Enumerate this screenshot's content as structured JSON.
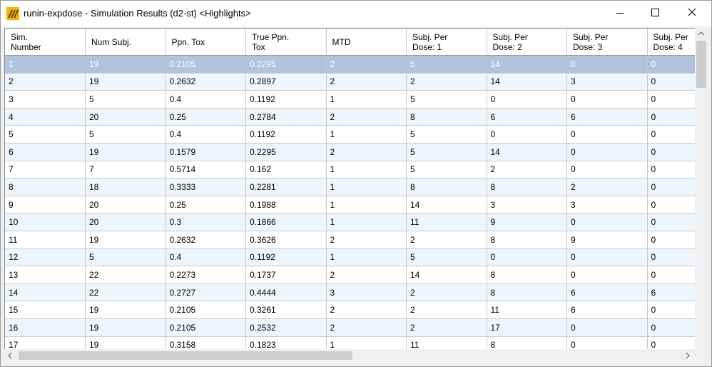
{
  "window": {
    "title": "runin-expdose - Simulation Results (d2-st) <Highlights>"
  },
  "table": {
    "columns": [
      "Sim. Number",
      "Num Subj.",
      "Ppn. Tox",
      "True Ppn. Tox",
      "MTD",
      "Subj. Per Dose: 1",
      "Subj. Per Dose: 2",
      "Subj. Per Dose: 3",
      "Subj. Per Dose: 4"
    ],
    "selected_row": 0,
    "rows": [
      [
        "1",
        "19",
        "0.2105",
        "0.2295",
        "2",
        "5",
        "14",
        "0",
        "0"
      ],
      [
        "2",
        "19",
        "0.2632",
        "0.2897",
        "2",
        "2",
        "14",
        "3",
        "0"
      ],
      [
        "3",
        "5",
        "0.4",
        "0.1192",
        "1",
        "5",
        "0",
        "0",
        "0"
      ],
      [
        "4",
        "20",
        "0.25",
        "0.2784",
        "2",
        "8",
        "6",
        "6",
        "0"
      ],
      [
        "5",
        "5",
        "0.4",
        "0.1192",
        "1",
        "5",
        "0",
        "0",
        "0"
      ],
      [
        "6",
        "19",
        "0.1579",
        "0.2295",
        "2",
        "5",
        "14",
        "0",
        "0"
      ],
      [
        "7",
        "7",
        "0.5714",
        "0.162",
        "1",
        "5",
        "2",
        "0",
        "0"
      ],
      [
        "8",
        "18",
        "0.3333",
        "0.2281",
        "1",
        "8",
        "8",
        "2",
        "0"
      ],
      [
        "9",
        "20",
        "0.25",
        "0.1988",
        "1",
        "14",
        "3",
        "3",
        "0"
      ],
      [
        "10",
        "20",
        "0.3",
        "0.1866",
        "1",
        "11",
        "9",
        "0",
        "0"
      ],
      [
        "11",
        "19",
        "0.2632",
        "0.3626",
        "2",
        "2",
        "8",
        "9",
        "0"
      ],
      [
        "12",
        "5",
        "0.4",
        "0.1192",
        "1",
        "5",
        "0",
        "0",
        "0"
      ],
      [
        "13",
        "22",
        "0.2273",
        "0.1737",
        "2",
        "14",
        "8",
        "0",
        "0"
      ],
      [
        "14",
        "22",
        "0.2727",
        "0.4444",
        "3",
        "2",
        "8",
        "6",
        "6"
      ],
      [
        "15",
        "19",
        "0.2105",
        "0.3261",
        "2",
        "2",
        "11",
        "6",
        "0"
      ],
      [
        "16",
        "19",
        "0.2105",
        "0.2532",
        "2",
        "2",
        "17",
        "0",
        "0"
      ],
      [
        "17",
        "19",
        "0.3158",
        "0.1823",
        "1",
        "11",
        "8",
        "0",
        "0"
      ]
    ]
  }
}
